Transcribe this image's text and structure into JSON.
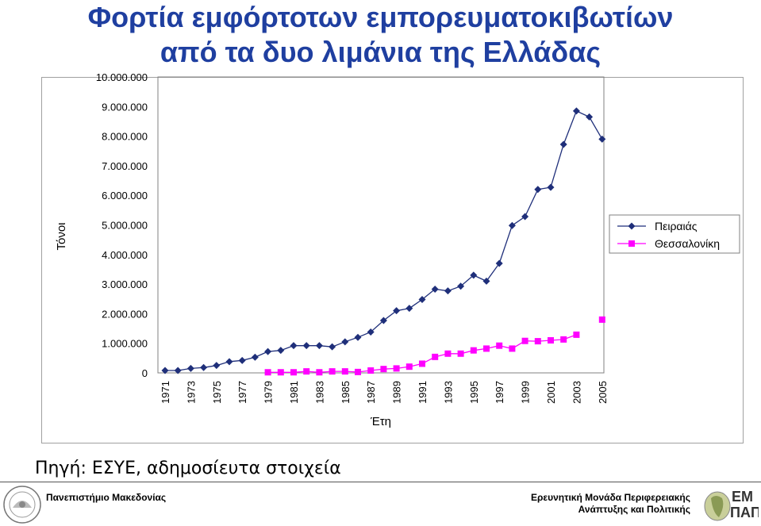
{
  "slide": {
    "title_line1": "Φορτία εμφόρτοτων εμπορευματοκιβωτίων",
    "title_line2": "από τα δυο λιμάνια της Ελλάδας",
    "source": "Πηγή: ΕΣΥΕ, αδημοσίευτα στοιχεία",
    "footer_left": "Πανεπιστήμιο Μακεδονίας",
    "footer_right_line1": "Ερευνητική Μονάδα Περιφερειακής",
    "footer_right_line2": "Ανάπτυξης και Πολιτικής",
    "logo_text": "ΕΜ ΠΑΠ",
    "colors": {
      "title": "#1f3fa0",
      "piraeus": "#1f2f7a",
      "thessaloniki": "#ff00ff"
    }
  },
  "chart_data": {
    "type": "line",
    "title": "",
    "xlabel": "Έτη",
    "ylabel": "Τόνοι",
    "ylim": [
      0,
      10000000
    ],
    "y_ticks": [
      0,
      1000000,
      2000000,
      3000000,
      4000000,
      5000000,
      6000000,
      7000000,
      8000000,
      9000000,
      10000000
    ],
    "y_tick_labels": [
      "0",
      "1.000.000",
      "2.000.000",
      "3.000.000",
      "4.000.000",
      "5.000.000",
      "6.000.000",
      "7.000.000",
      "8.000.000",
      "9.000.000",
      "10.000.000"
    ],
    "x": [
      1971,
      1972,
      1973,
      1974,
      1975,
      1976,
      1977,
      1978,
      1979,
      1980,
      1981,
      1982,
      1983,
      1984,
      1985,
      1986,
      1987,
      1988,
      1989,
      1990,
      1991,
      1992,
      1993,
      1994,
      1995,
      1996,
      1997,
      1998,
      1999,
      2000,
      2001,
      2002,
      2003,
      2004,
      2005
    ],
    "x_tick_labels": [
      "1971",
      "1973",
      "1975",
      "1977",
      "1979",
      "1981",
      "1983",
      "1985",
      "1987",
      "1989",
      "1991",
      "1993",
      "1995",
      "1997",
      "1999",
      "2001",
      "2003",
      "2005"
    ],
    "legend_position": "right",
    "grid": false,
    "series": [
      {
        "name": "Πειραιάς",
        "marker": "diamond",
        "values": [
          80000,
          80000,
          150000,
          180000,
          250000,
          380000,
          420000,
          530000,
          720000,
          760000,
          920000,
          920000,
          920000,
          880000,
          1050000,
          1200000,
          1380000,
          1770000,
          2100000,
          2180000,
          2480000,
          2830000,
          2770000,
          2930000,
          3300000,
          3100000,
          3700000,
          4980000,
          5280000,
          6200000,
          6270000,
          7720000,
          8850000,
          8650000,
          7900000
        ]
      },
      {
        "name": "Θεσσαλονίκη",
        "marker": "square",
        "values": [
          null,
          null,
          null,
          null,
          null,
          null,
          null,
          null,
          20000,
          20000,
          20000,
          50000,
          20000,
          50000,
          50000,
          30000,
          80000,
          130000,
          150000,
          210000,
          310000,
          540000,
          650000,
          650000,
          760000,
          820000,
          920000,
          820000,
          1080000,
          1070000,
          1100000,
          1130000,
          1290000,
          null,
          1800000
        ]
      }
    ]
  }
}
